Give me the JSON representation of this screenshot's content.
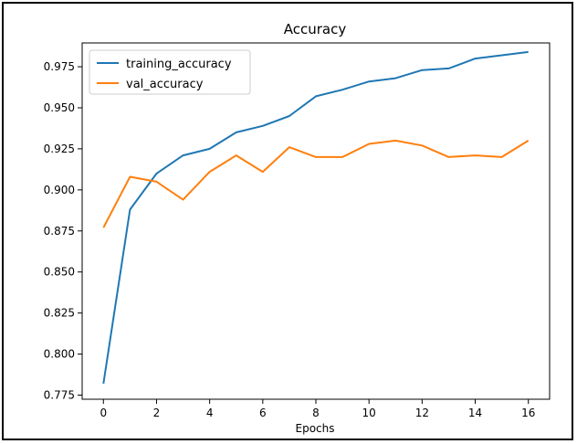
{
  "chart_data": {
    "type": "line",
    "title": "Accuracy",
    "xlabel": "Epochs",
    "ylabel": "",
    "xlim": [
      -0.8,
      16.8
    ],
    "ylim": [
      0.7725,
      0.9895
    ],
    "xticks": [
      0,
      2,
      4,
      6,
      8,
      10,
      12,
      14,
      16
    ],
    "yticks": [
      0.775,
      0.8,
      0.825,
      0.85,
      0.875,
      0.9,
      0.925,
      0.95,
      0.975
    ],
    "ytick_labels": [
      "0.775",
      "0.800",
      "0.825",
      "0.850",
      "0.875",
      "0.900",
      "0.925",
      "0.950",
      "0.975"
    ],
    "x": [
      0,
      1,
      2,
      3,
      4,
      5,
      6,
      7,
      8,
      9,
      10,
      11,
      12,
      13,
      14,
      15,
      16
    ],
    "series": [
      {
        "name": "training_accuracy",
        "color": "#1f77b4",
        "values": [
          0.782,
          0.888,
          0.91,
          0.921,
          0.925,
          0.935,
          0.939,
          0.945,
          0.957,
          0.961,
          0.966,
          0.968,
          0.973,
          0.974,
          0.98,
          0.982,
          0.984
        ]
      },
      {
        "name": "val_accuracy",
        "color": "#ff7f0e",
        "values": [
          0.877,
          0.908,
          0.905,
          0.894,
          0.911,
          0.921,
          0.911,
          0.926,
          0.92,
          0.92,
          0.928,
          0.93,
          0.927,
          0.92,
          0.921,
          0.92,
          0.93
        ]
      }
    ],
    "grid": false,
    "legend": "upper left"
  }
}
